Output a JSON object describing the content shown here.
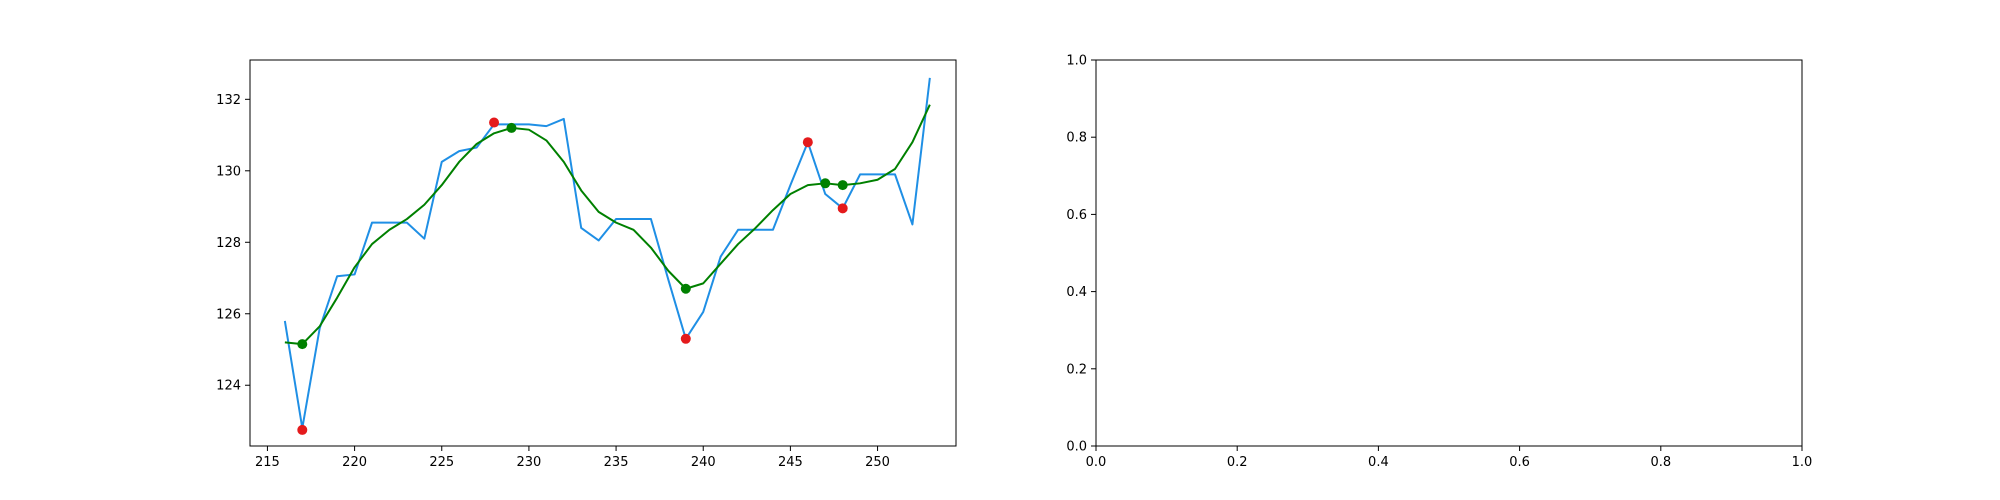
{
  "chart_data": [
    {
      "type": "line",
      "title": "",
      "xlabel": "",
      "ylabel": "",
      "xlim": [
        214.0,
        254.5
      ],
      "ylim": [
        122.3,
        133.1
      ],
      "grid": false,
      "x_ticks": [
        215,
        220,
        225,
        230,
        235,
        240,
        245,
        250
      ],
      "y_ticks": [
        124,
        126,
        128,
        130,
        132
      ],
      "series": [
        {
          "kind": "line",
          "color": "#1f8fe5",
          "x": [
            216,
            217,
            218,
            219,
            220,
            221,
            222,
            223,
            224,
            225,
            226,
            227,
            228,
            229,
            230,
            231,
            232,
            233,
            234,
            235,
            236,
            237,
            238,
            239,
            240,
            241,
            242,
            243,
            244,
            245,
            246,
            247,
            248,
            249,
            250,
            251,
            252,
            253
          ],
          "y": [
            125.8,
            122.8,
            125.6,
            127.05,
            127.1,
            128.55,
            128.55,
            128.55,
            128.1,
            130.25,
            130.55,
            130.65,
            131.3,
            131.3,
            131.3,
            131.25,
            131.45,
            128.4,
            128.05,
            128.65,
            128.65,
            128.65,
            126.95,
            125.3,
            126.05,
            127.6,
            128.35,
            128.35,
            128.35,
            129.6,
            130.8,
            129.35,
            128.95,
            129.9,
            129.9,
            129.9,
            128.5,
            132.6
          ]
        },
        {
          "kind": "line",
          "color": "#008000",
          "x": [
            216,
            217,
            218,
            219,
            220,
            221,
            222,
            223,
            224,
            225,
            226,
            227,
            228,
            229,
            230,
            231,
            232,
            233,
            234,
            235,
            236,
            237,
            238,
            239,
            240,
            241,
            242,
            243,
            244,
            245,
            246,
            247,
            248,
            249,
            250,
            251,
            252,
            253
          ],
          "y": [
            125.2,
            125.15,
            125.65,
            126.45,
            127.3,
            127.95,
            128.35,
            128.65,
            129.05,
            129.6,
            130.25,
            130.75,
            131.05,
            131.2,
            131.15,
            130.85,
            130.25,
            129.45,
            128.85,
            128.55,
            128.35,
            127.85,
            127.2,
            126.7,
            126.85,
            127.4,
            127.95,
            128.4,
            128.9,
            129.35,
            129.6,
            129.65,
            129.6,
            129.65,
            129.75,
            130.05,
            130.8,
            131.85
          ]
        },
        {
          "kind": "scatter",
          "color": "#e41a1c",
          "x": [
            217,
            228,
            239,
            246,
            248
          ],
          "y": [
            122.75,
            131.35,
            125.3,
            130.8,
            128.95
          ]
        },
        {
          "kind": "scatter",
          "color": "#008000",
          "x": [
            217,
            229,
            239,
            247,
            248
          ],
          "y": [
            125.15,
            131.2,
            126.7,
            129.65,
            129.6
          ]
        }
      ]
    },
    {
      "type": "line",
      "title": "",
      "xlabel": "",
      "ylabel": "",
      "xlim": [
        0.0,
        1.0
      ],
      "ylim": [
        0.0,
        1.0
      ],
      "grid": false,
      "x_ticks": [
        "0.0",
        "0.2",
        "0.4",
        "0.6",
        "0.8",
        "1.0"
      ],
      "y_ticks": [
        "0.0",
        "0.2",
        "0.4",
        "0.6",
        "0.8",
        "1.0"
      ],
      "series": []
    }
  ]
}
